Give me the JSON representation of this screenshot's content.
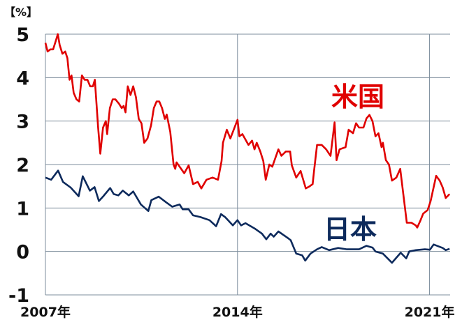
{
  "chart_data": {
    "type": "line",
    "unit_label": "【%】",
    "ylim": [
      -1,
      5
    ],
    "yticks": [
      "5",
      "4",
      "3",
      "2",
      "1",
      "0",
      "-1"
    ],
    "xlim": [
      2007,
      2021.75
    ],
    "xticks": [
      {
        "year": 2007,
        "label": "2007年"
      },
      {
        "year": 2014,
        "label": "2014年"
      },
      {
        "year": 2021,
        "label": "2021年"
      }
    ],
    "grid": true,
    "legend": "inline",
    "series": [
      {
        "name": "米国",
        "color": "#e00000",
        "x": [
          2007.0,
          2007.08,
          2007.18,
          2007.28,
          2007.38,
          2007.45,
          2007.52,
          2007.62,
          2007.72,
          2007.8,
          2007.88,
          2007.95,
          2008.03,
          2008.13,
          2008.23,
          2008.33,
          2008.43,
          2008.53,
          2008.63,
          2008.73,
          2008.8,
          2008.92,
          2009.0,
          2009.1,
          2009.2,
          2009.25,
          2009.35,
          2009.45,
          2009.55,
          2009.68,
          2009.78,
          2009.85,
          2009.92,
          2010.0,
          2010.1,
          2010.2,
          2010.3,
          2010.4,
          2010.5,
          2010.6,
          2010.72,
          2010.85,
          2010.95,
          2011.05,
          2011.15,
          2011.25,
          2011.35,
          2011.42,
          2011.55,
          2011.67,
          2011.73,
          2011.78,
          2012.06,
          2012.22,
          2012.38,
          2012.55,
          2012.68,
          2012.87,
          2013.09,
          2013.29,
          2013.42,
          2013.47,
          2013.61,
          2013.74,
          2014.0,
          2014.07,
          2014.18,
          2014.4,
          2014.53,
          2014.62,
          2014.7,
          2014.83,
          2014.94,
          2015.03,
          2015.16,
          2015.27,
          2015.49,
          2015.6,
          2015.76,
          2015.92,
          2015.98,
          2016.14,
          2016.3,
          2016.49,
          2016.63,
          2016.74,
          2016.79,
          2016.9,
          2017.07,
          2017.23,
          2017.39,
          2017.54,
          2017.61,
          2017.72,
          2017.94,
          2018.05,
          2018.21,
          2018.32,
          2018.43,
          2018.59,
          2018.7,
          2018.81,
          2018.92,
          2019.03,
          2019.14,
          2019.25,
          2019.3,
          2019.41,
          2019.52,
          2019.63,
          2019.79,
          2019.93,
          2020.17,
          2020.34,
          2020.5,
          2020.55,
          2020.66,
          2020.77,
          2020.93,
          2021.04,
          2021.24,
          2021.37,
          2021.48,
          2021.59,
          2021.73
        ],
        "values": [
          4.8,
          4.6,
          4.65,
          4.65,
          4.85,
          5.0,
          4.75,
          4.55,
          4.6,
          4.45,
          3.95,
          4.05,
          3.65,
          3.5,
          3.45,
          4.05,
          3.95,
          3.95,
          3.8,
          3.8,
          3.95,
          2.85,
          2.25,
          2.85,
          3.0,
          2.7,
          3.3,
          3.5,
          3.5,
          3.4,
          3.3,
          3.35,
          3.2,
          3.8,
          3.6,
          3.8,
          3.55,
          3.05,
          2.95,
          2.5,
          2.6,
          2.9,
          3.3,
          3.45,
          3.45,
          3.3,
          3.05,
          3.15,
          2.75,
          2.0,
          1.9,
          2.05,
          1.8,
          1.98,
          1.55,
          1.6,
          1.45,
          1.65,
          1.7,
          1.65,
          2.08,
          2.5,
          2.8,
          2.6,
          3.03,
          2.65,
          2.7,
          2.45,
          2.55,
          2.35,
          2.5,
          2.3,
          2.08,
          1.65,
          2.0,
          1.95,
          2.35,
          2.2,
          2.3,
          2.3,
          1.98,
          1.7,
          1.85,
          1.45,
          1.5,
          1.55,
          1.85,
          2.45,
          2.45,
          2.35,
          2.2,
          2.97,
          2.1,
          2.35,
          2.4,
          2.8,
          2.72,
          2.95,
          2.85,
          2.85,
          3.06,
          3.14,
          3.0,
          2.65,
          2.72,
          2.4,
          2.5,
          2.1,
          2.0,
          1.63,
          1.7,
          1.9,
          0.66,
          0.66,
          0.6,
          0.55,
          0.7,
          0.87,
          0.95,
          1.16,
          1.74,
          1.63,
          1.47,
          1.23,
          1.32
        ]
      },
      {
        "name": "日本",
        "color": "#0d2a5c",
        "x": [
          2007.0,
          2007.21,
          2007.46,
          2007.64,
          2007.92,
          2008.21,
          2008.36,
          2008.62,
          2008.79,
          2008.95,
          2009.11,
          2009.36,
          2009.49,
          2009.66,
          2009.82,
          2010.04,
          2010.2,
          2010.48,
          2010.75,
          2010.86,
          2011.13,
          2011.4,
          2011.62,
          2011.89,
          2012.0,
          2012.22,
          2012.38,
          2012.65,
          2012.98,
          2013.22,
          2013.4,
          2013.55,
          2013.83,
          2014.0,
          2014.13,
          2014.29,
          2014.62,
          2014.89,
          2015.05,
          2015.21,
          2015.32,
          2015.49,
          2015.81,
          2015.94,
          2016.14,
          2016.36,
          2016.47,
          2016.66,
          2016.9,
          2017.07,
          2017.34,
          2017.67,
          2017.99,
          2018.43,
          2018.7,
          2018.92,
          2019.03,
          2019.3,
          2019.63,
          2019.95,
          2020.15,
          2020.26,
          2020.5,
          2020.83,
          2021.01,
          2021.15,
          2021.48,
          2021.59,
          2021.73
        ],
        "values": [
          1.7,
          1.65,
          1.86,
          1.6,
          1.47,
          1.27,
          1.73,
          1.4,
          1.48,
          1.16,
          1.27,
          1.46,
          1.32,
          1.29,
          1.4,
          1.29,
          1.38,
          1.08,
          0.93,
          1.18,
          1.26,
          1.13,
          1.03,
          1.08,
          0.97,
          0.97,
          0.83,
          0.79,
          0.72,
          0.58,
          0.86,
          0.79,
          0.6,
          0.72,
          0.6,
          0.65,
          0.53,
          0.41,
          0.28,
          0.41,
          0.34,
          0.46,
          0.32,
          0.26,
          -0.05,
          -0.09,
          -0.21,
          -0.05,
          0.05,
          0.1,
          0.03,
          0.08,
          0.05,
          0.05,
          0.13,
          0.09,
          0.0,
          -0.05,
          -0.26,
          -0.03,
          -0.16,
          0.0,
          0.03,
          0.05,
          0.04,
          0.16,
          0.08,
          0.03,
          0.06
        ]
      }
    ],
    "grid_color": "#7d8d9c"
  }
}
